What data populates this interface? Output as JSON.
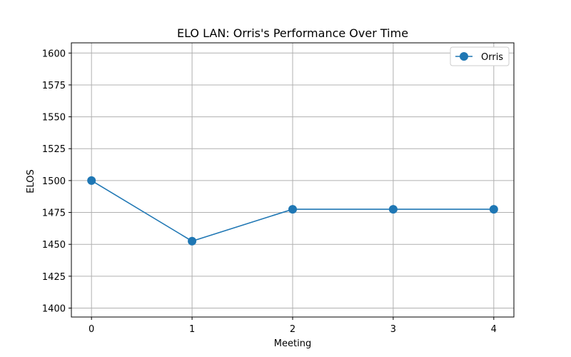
{
  "chart_data": {
    "type": "line",
    "title": "ELO LAN: Orris's Performance Over Time",
    "xlabel": "Meeting",
    "ylabel": "ELOS",
    "x": [
      0,
      1,
      2,
      3,
      4
    ],
    "series": [
      {
        "name": "Orris",
        "values": [
          1500,
          1452.5,
          1477.5,
          1477.5,
          1477.5
        ],
        "color": "#1f77b4",
        "marker": "circle"
      }
    ],
    "xlim": [
      -0.2,
      4.2
    ],
    "ylim": [
      1393,
      1608
    ],
    "xticks": [
      0,
      1,
      2,
      3,
      4
    ],
    "yticks": [
      1400,
      1425,
      1450,
      1475,
      1500,
      1525,
      1550,
      1575,
      1600
    ],
    "grid": true,
    "legend_position": "top-right"
  }
}
